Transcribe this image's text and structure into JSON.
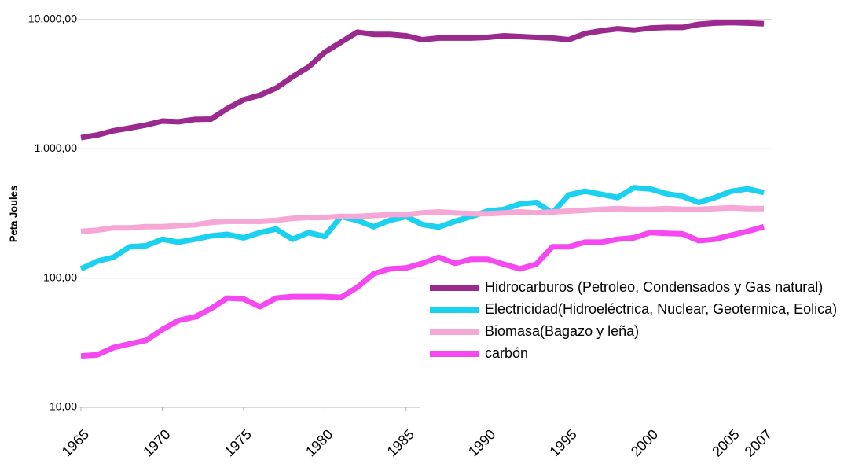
{
  "chart_data": {
    "type": "line",
    "y_label": "Peta Joules",
    "x": [
      1965,
      1966,
      1967,
      1968,
      1969,
      1970,
      1971,
      1972,
      1973,
      1974,
      1975,
      1976,
      1977,
      1978,
      1979,
      1980,
      1981,
      1982,
      1983,
      1984,
      1985,
      1986,
      1987,
      1988,
      1989,
      1990,
      1991,
      1992,
      1993,
      1994,
      1995,
      1996,
      1997,
      1998,
      1999,
      2000,
      2001,
      2002,
      2003,
      2004,
      2005,
      2006,
      2007
    ],
    "xlim": [
      1965,
      2007
    ],
    "xticks": [
      1965,
      1970,
      1975,
      1980,
      1985,
      1990,
      1995,
      2000,
      2005,
      2007
    ],
    "ylim": [
      10,
      10000
    ],
    "log_y": true,
    "grid": true,
    "yticks": [
      {
        "value": 10,
        "label": "10,00"
      },
      {
        "value": 100,
        "label": "100,00"
      },
      {
        "value": 1000,
        "label": "1.000,00"
      },
      {
        "value": 10000,
        "label": "10.000,00"
      }
    ],
    "legend": "bottom-right",
    "series": [
      {
        "name": "Hidrocarburos (Petroleo, Condensados y Gas natural)",
        "color": "#9b2a8e",
        "values": [
          1220,
          1280,
          1380,
          1450,
          1530,
          1640,
          1620,
          1690,
          1700,
          2050,
          2400,
          2600,
          2950,
          3600,
          4300,
          5600,
          6700,
          8000,
          7700,
          7700,
          7500,
          7000,
          7200,
          7200,
          7200,
          7300,
          7500,
          7400,
          7300,
          7200,
          7000,
          7800,
          8200,
          8500,
          8300,
          8600,
          8700,
          8700,
          9200,
          9400,
          9500,
          9400,
          9300
        ]
      },
      {
        "name": "Electricidad(Hidroeléctrica, Nuclear, Geotermica, Eolica)",
        "color": "#1ad2f0",
        "values": [
          118,
          135,
          145,
          175,
          178,
          200,
          190,
          200,
          212,
          218,
          205,
          225,
          240,
          200,
          225,
          210,
          300,
          280,
          250,
          280,
          300,
          260,
          248,
          275,
          300,
          330,
          340,
          375,
          385,
          320,
          440,
          470,
          445,
          420,
          500,
          490,
          450,
          430,
          385,
          420,
          470,
          490,
          460
        ]
      },
      {
        "name": "Biomasa(Bagazo y leña)",
        "color": "#f5a8d5",
        "values": [
          230,
          235,
          245,
          245,
          250,
          250,
          255,
          258,
          270,
          275,
          275,
          275,
          280,
          290,
          295,
          295,
          300,
          300,
          305,
          310,
          310,
          320,
          325,
          320,
          315,
          315,
          320,
          325,
          320,
          325,
          330,
          335,
          340,
          345,
          340,
          340,
          345,
          340,
          340,
          345,
          350,
          345,
          345
        ]
      },
      {
        "name": "carbón",
        "color": "#f548f0",
        "values": [
          25,
          25.5,
          29,
          31,
          33,
          40,
          47,
          50,
          58,
          70,
          69,
          60,
          70,
          72,
          72,
          72,
          71,
          85,
          108,
          118,
          120,
          130,
          145,
          130,
          140,
          140,
          128,
          118,
          128,
          175,
          175,
          190,
          190,
          200,
          205,
          225,
          222,
          220,
          195,
          200,
          215,
          230,
          250
        ]
      }
    ]
  }
}
